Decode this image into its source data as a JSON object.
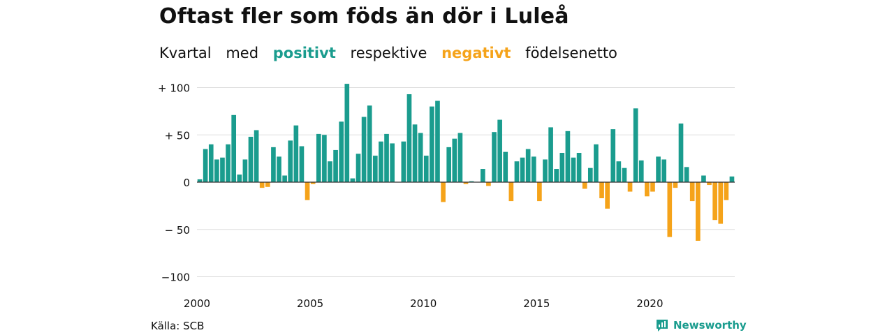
{
  "title": "Oftast fler som föds än dör i Luleå",
  "subtitle": {
    "part1": "Kvartal",
    "part2": "med",
    "positive_word": "positivt",
    "part3": "respektive",
    "negative_word": "negativt",
    "part4": "födelsenetto"
  },
  "colors": {
    "positive": "#1a9c8e",
    "negative": "#f5a31a",
    "grid": "#dddddd",
    "axis": "#333333"
  },
  "source": "Källa: SCB",
  "brand": {
    "name": "Newsworthy",
    "icon": "newsworthy-logo-icon"
  },
  "chart_data": {
    "type": "bar",
    "x_start_year": 2000,
    "periods_per_year": 4,
    "xticks": [
      "2000",
      "2005",
      "2010",
      "2015",
      "2020"
    ],
    "ylim": [
      -100,
      100
    ],
    "yticks": [
      {
        "value": 100,
        "label": "+ 100"
      },
      {
        "value": 50,
        "label": "+  50"
      },
      {
        "value": 0,
        "label": "0"
      },
      {
        "value": -50,
        "label": "− 50"
      },
      {
        "value": -100,
        "label": "−100"
      }
    ],
    "values": [
      3,
      35,
      40,
      24,
      26,
      40,
      71,
      8,
      24,
      48,
      55,
      -6,
      -5,
      37,
      27,
      7,
      44,
      60,
      38,
      -19,
      -2,
      51,
      50,
      22,
      34,
      64,
      104,
      4,
      30,
      69,
      81,
      28,
      43,
      51,
      41,
      0,
      43,
      93,
      61,
      52,
      28,
      80,
      86,
      -21,
      37,
      46,
      52,
      -2,
      1,
      0,
      14,
      -4,
      53,
      66,
      32,
      -20,
      22,
      26,
      35,
      27,
      -20,
      24,
      58,
      14,
      31,
      54,
      26,
      31,
      -7,
      15,
      40,
      -17,
      -28,
      56,
      22,
      15,
      -10,
      78,
      23,
      -15,
      -10,
      27,
      24,
      -58,
      -6,
      62,
      16,
      -20,
      -62,
      7,
      -3,
      -40,
      -44,
      -19,
      6
    ]
  }
}
